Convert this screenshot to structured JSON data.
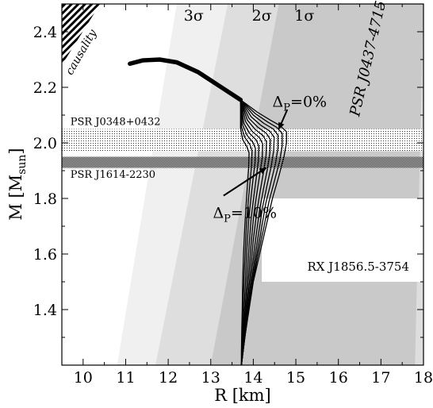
{
  "chart_data": {
    "type": "line",
    "title": "",
    "xlabel": "R [km]",
    "ylabel": "M [M",
    "ylabel_sub": "sun",
    "ylabel_close": "]",
    "xlim": [
      9.5,
      18
    ],
    "ylim": [
      1.2,
      2.5
    ],
    "xticks": [
      10,
      11,
      12,
      13,
      14,
      15,
      16,
      17,
      18
    ],
    "yticks": [
      1.4,
      1.6,
      1.8,
      2.0,
      2.2,
      2.4
    ],
    "colors": {
      "band3": "#f0f0f0",
      "band2": "#dedede",
      "band1": "#c9c9c9",
      "box": "#ffffff",
      "curve": "#000000"
    },
    "confidence_regions": [
      {
        "label": "3σ",
        "label_at": [
          12.6,
          2.44
        ],
        "x_bottom": [
          10.8,
          18.0
        ],
        "x_top": [
          12.2,
          18.0
        ]
      },
      {
        "label": "2σ",
        "label_at": [
          14.2,
          2.44
        ],
        "x_bottom": [
          11.7,
          18.0
        ],
        "x_top": [
          13.4,
          18.0
        ]
      },
      {
        "label": "1σ",
        "label_at": [
          15.2,
          2.44
        ],
        "x_bottom": [
          13.0,
          17.8
        ],
        "x_top": [
          14.6,
          18.0
        ]
      }
    ],
    "mass_bands": [
      {
        "label": "PSR J0348+0432",
        "y_min": 1.97,
        "y_max": 2.05,
        "pattern": "dots-light",
        "label_at": [
          9.7,
          2.065
        ]
      },
      {
        "label": "PSR J1614-2230",
        "y_min": 1.91,
        "y_max": 1.95,
        "pattern": "dots-dark",
        "label_at": [
          9.7,
          1.875
        ]
      }
    ],
    "causality": {
      "label": "causality",
      "region": [
        [
          9.5,
          2.5
        ],
        [
          10.4,
          2.5
        ],
        [
          9.5,
          2.28
        ]
      ]
    },
    "rx_box": {
      "label": "RX J1856.5-3754",
      "x_min": 14.2,
      "x_max": 18.0,
      "y_min": 1.5,
      "y_max": 1.8
    },
    "psr_label": {
      "label": "PSR J0437-4715",
      "at": [
        16.8,
        2.3
      ],
      "angle": -77
    },
    "annotations": [
      {
        "text": "Δ",
        "sub": "P",
        "rest": "=0%",
        "at": [
          14.45,
          2.13
        ],
        "arrow_from": [
          14.8,
          2.12
        ],
        "arrow_to": [
          14.6,
          2.05
        ]
      },
      {
        "text": "Δ",
        "sub": "P",
        "rest": "=10%",
        "at": [
          13.05,
          1.73
        ],
        "arrow_from": [
          13.3,
          1.81
        ],
        "arrow_to": [
          14.3,
          1.91
        ]
      }
    ],
    "series": [
      {
        "values": [
          [
            11.1,
            2.285
          ],
          [
            11.4,
            2.297
          ],
          [
            11.8,
            2.3
          ],
          [
            12.2,
            2.29
          ],
          [
            12.7,
            2.255
          ],
          [
            13.2,
            2.205
          ],
          [
            13.7,
            2.155
          ],
          [
            14.1,
            2.11
          ],
          [
            14.4,
            2.082
          ],
          [
            14.62,
            2.063
          ],
          [
            14.78,
            2.04
          ],
          [
            14.78,
            2.0
          ],
          [
            14.72,
            1.95
          ],
          [
            14.6,
            1.88
          ],
          [
            14.45,
            1.8
          ],
          [
            14.3,
            1.7
          ],
          [
            14.15,
            1.6
          ],
          [
            14.0,
            1.5
          ],
          [
            13.9,
            1.4
          ],
          [
            13.8,
            1.3
          ],
          [
            13.72,
            1.2
          ]
        ]
      },
      {
        "values": [
          [
            13.7,
            2.155
          ],
          [
            14.05,
            2.105
          ],
          [
            14.33,
            2.076
          ],
          [
            14.55,
            2.056
          ],
          [
            14.68,
            2.034
          ],
          [
            14.68,
            1.99
          ],
          [
            14.62,
            1.935
          ],
          [
            14.5,
            1.865
          ],
          [
            14.37,
            1.79
          ],
          [
            14.24,
            1.69
          ],
          [
            14.1,
            1.59
          ],
          [
            13.98,
            1.49
          ],
          [
            13.88,
            1.39
          ],
          [
            13.79,
            1.29
          ],
          [
            13.72,
            1.2
          ]
        ]
      },
      {
        "values": [
          [
            13.7,
            2.155
          ],
          [
            14.0,
            2.1
          ],
          [
            14.25,
            2.07
          ],
          [
            14.47,
            2.05
          ],
          [
            14.58,
            2.028
          ],
          [
            14.58,
            1.982
          ],
          [
            14.52,
            1.925
          ],
          [
            14.41,
            1.855
          ],
          [
            14.29,
            1.78
          ],
          [
            14.18,
            1.68
          ],
          [
            14.06,
            1.58
          ],
          [
            13.96,
            1.48
          ],
          [
            13.87,
            1.38
          ],
          [
            13.79,
            1.285
          ],
          [
            13.72,
            1.2
          ]
        ]
      },
      {
        "values": [
          [
            13.7,
            2.155
          ],
          [
            13.95,
            2.094
          ],
          [
            14.18,
            2.063
          ],
          [
            14.39,
            2.042
          ],
          [
            14.49,
            2.02
          ],
          [
            14.48,
            1.973
          ],
          [
            14.42,
            1.915
          ],
          [
            14.32,
            1.845
          ],
          [
            14.22,
            1.77
          ],
          [
            14.12,
            1.67
          ],
          [
            14.02,
            1.57
          ],
          [
            13.94,
            1.47
          ],
          [
            13.86,
            1.37
          ],
          [
            13.78,
            1.28
          ],
          [
            13.72,
            1.2
          ]
        ]
      },
      {
        "values": [
          [
            13.7,
            2.155
          ],
          [
            13.9,
            2.088
          ],
          [
            14.11,
            2.056
          ],
          [
            14.31,
            2.034
          ],
          [
            14.4,
            2.012
          ],
          [
            14.39,
            1.964
          ],
          [
            14.33,
            1.905
          ],
          [
            14.24,
            1.835
          ],
          [
            14.15,
            1.76
          ],
          [
            14.06,
            1.66
          ],
          [
            13.98,
            1.56
          ],
          [
            13.91,
            1.46
          ],
          [
            13.84,
            1.365
          ],
          [
            13.78,
            1.275
          ],
          [
            13.72,
            1.2
          ]
        ]
      },
      {
        "values": [
          [
            13.7,
            2.155
          ],
          [
            13.86,
            2.082
          ],
          [
            14.04,
            2.049
          ],
          [
            14.23,
            2.026
          ],
          [
            14.31,
            2.004
          ],
          [
            14.3,
            1.955
          ],
          [
            14.24,
            1.895
          ],
          [
            14.16,
            1.825
          ],
          [
            14.08,
            1.75
          ],
          [
            14.0,
            1.65
          ],
          [
            13.94,
            1.55
          ],
          [
            13.88,
            1.45
          ],
          [
            13.82,
            1.36
          ],
          [
            13.77,
            1.27
          ],
          [
            13.72,
            1.2
          ]
        ]
      },
      {
        "values": [
          [
            13.7,
            2.155
          ],
          [
            13.82,
            2.076
          ],
          [
            13.97,
            2.042
          ],
          [
            14.15,
            2.018
          ],
          [
            14.22,
            1.996
          ],
          [
            14.21,
            1.946
          ],
          [
            14.15,
            1.885
          ],
          [
            14.08,
            1.815
          ],
          [
            14.01,
            1.74
          ],
          [
            13.95,
            1.64
          ],
          [
            13.9,
            1.54
          ],
          [
            13.85,
            1.44
          ],
          [
            13.8,
            1.355
          ],
          [
            13.76,
            1.265
          ],
          [
            13.72,
            1.2
          ]
        ]
      },
      {
        "values": [
          [
            13.7,
            2.155
          ],
          [
            13.78,
            2.07
          ],
          [
            13.91,
            2.035
          ],
          [
            14.07,
            2.01
          ],
          [
            14.13,
            1.988
          ],
          [
            14.12,
            1.937
          ],
          [
            14.07,
            1.875
          ],
          [
            14.01,
            1.805
          ],
          [
            13.95,
            1.73
          ],
          [
            13.9,
            1.63
          ],
          [
            13.86,
            1.53
          ],
          [
            13.82,
            1.43
          ],
          [
            13.78,
            1.35
          ],
          [
            13.75,
            1.26
          ],
          [
            13.72,
            1.2
          ]
        ]
      },
      {
        "values": [
          [
            13.7,
            2.155
          ],
          [
            13.75,
            2.064
          ],
          [
            13.85,
            2.028
          ],
          [
            13.99,
            2.002
          ],
          [
            14.05,
            1.98
          ],
          [
            14.04,
            1.928
          ],
          [
            13.99,
            1.865
          ],
          [
            13.94,
            1.795
          ],
          [
            13.89,
            1.72
          ],
          [
            13.85,
            1.62
          ],
          [
            13.82,
            1.52
          ],
          [
            13.79,
            1.42
          ],
          [
            13.76,
            1.345
          ],
          [
            13.74,
            1.255
          ],
          [
            13.72,
            1.2
          ]
        ]
      },
      {
        "values": [
          [
            13.7,
            2.155
          ],
          [
            13.72,
            2.058
          ],
          [
            13.8,
            2.02
          ],
          [
            13.92,
            1.994
          ],
          [
            13.97,
            1.972
          ],
          [
            13.96,
            1.919
          ],
          [
            13.92,
            1.855
          ],
          [
            13.88,
            1.785
          ],
          [
            13.84,
            1.71
          ],
          [
            13.81,
            1.61
          ],
          [
            13.78,
            1.51
          ],
          [
            13.76,
            1.41
          ],
          [
            13.74,
            1.34
          ],
          [
            13.73,
            1.25
          ],
          [
            13.72,
            1.2
          ]
        ]
      },
      {
        "values": [
          [
            13.7,
            2.155
          ],
          [
            13.7,
            2.052
          ],
          [
            13.75,
            2.012
          ],
          [
            13.85,
            1.986
          ],
          [
            13.9,
            1.964
          ],
          [
            13.89,
            1.91
          ],
          [
            13.86,
            1.845
          ],
          [
            13.83,
            1.775
          ],
          [
            13.8,
            1.7
          ],
          [
            13.77,
            1.6
          ],
          [
            13.75,
            1.5
          ],
          [
            13.74,
            1.4
          ],
          [
            13.73,
            1.335
          ],
          [
            13.72,
            1.245
          ],
          [
            13.72,
            1.2
          ]
        ]
      }
    ]
  }
}
